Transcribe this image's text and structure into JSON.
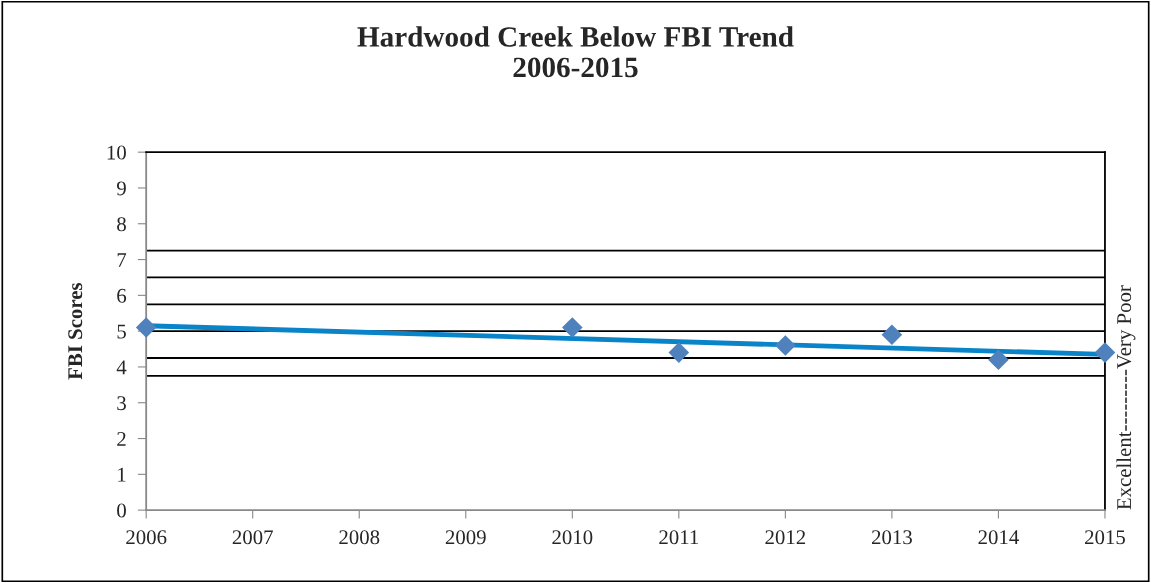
{
  "chart_data": {
    "type": "scatter",
    "title": "Hardwood Creek Below FBI Trend\n2006-2015",
    "ylabel": "FBI Scores",
    "series": [
      {
        "x": [
          2006,
          2010,
          2011,
          2012,
          2013,
          2014,
          2015
        ],
        "values": [
          5.1,
          5.1,
          4.4,
          4.6,
          4.9,
          4.2,
          4.4
        ],
        "color": "#4f81bd",
        "marker": "diamond"
      },
      {
        "type": "line",
        "x": [
          2006,
          2015
        ],
        "values": [
          5.15,
          4.35
        ],
        "color": "#0a84c8",
        "line_style": "solid",
        "marker": "none"
      }
    ],
    "xlim": [
      2006,
      2015
    ],
    "xticks": [
      2006,
      2007,
      2008,
      2009,
      2010,
      2011,
      2012,
      2013,
      2014,
      2015
    ],
    "ylim": [
      0,
      10
    ],
    "yticks": [
      0,
      1,
      2,
      3,
      4,
      5,
      6,
      7,
      8,
      9,
      10
    ],
    "ref_lines": [
      {
        "axis": "y",
        "value": 3.75,
        "color": "#000000"
      },
      {
        "axis": "y",
        "value": 4.25,
        "color": "#000000"
      },
      {
        "axis": "y",
        "value": 5.0,
        "color": "#000000"
      },
      {
        "axis": "y",
        "value": 5.75,
        "color": "#000000"
      },
      {
        "axis": "y",
        "value": 6.5,
        "color": "#000000"
      },
      {
        "axis": "y",
        "value": 7.25,
        "color": "#000000"
      }
    ],
    "annotations": [
      "Excellent---------Very Poor"
    ],
    "grid": false,
    "legend": false
  }
}
